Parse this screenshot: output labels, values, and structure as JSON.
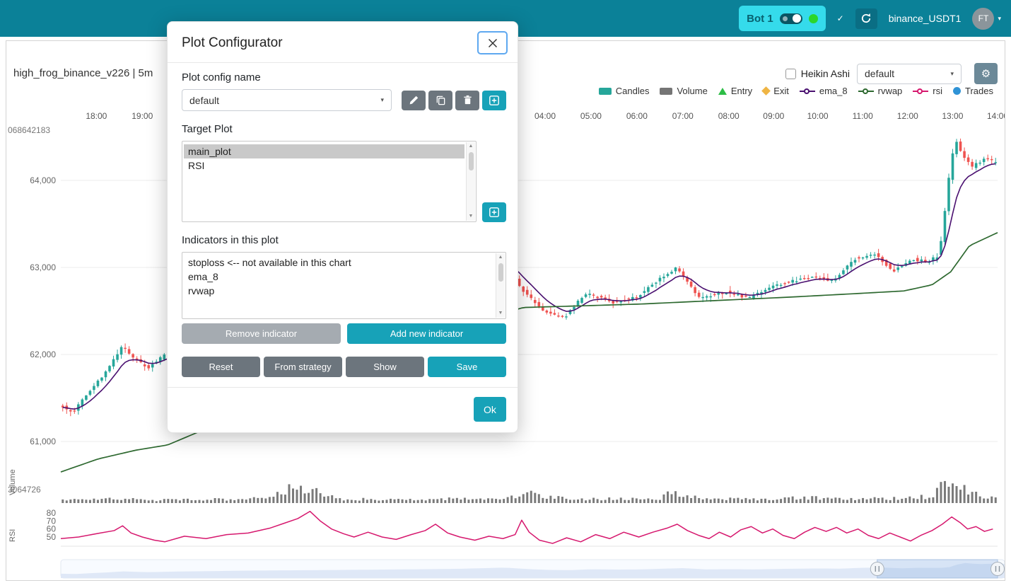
{
  "icons": {
    "check": "✓",
    "caret_down": "▾",
    "gear": "⚙",
    "scroll_up": "▲",
    "scroll_down": "▼"
  },
  "navbar": {
    "bot_label": "Bot 1",
    "exchange_label": "binance_USDT1",
    "avatar_label": "FT"
  },
  "chart": {
    "title": "high_frog_binance_v226 | 5m",
    "heikin_ashi_label": "Heikin Ashi",
    "plot_select_value": "default",
    "legend": [
      {
        "label": "Candles",
        "type": "rect",
        "color": "#26a69a"
      },
      {
        "label": "Volume",
        "type": "rect",
        "color": "#757575"
      },
      {
        "label": "Entry",
        "type": "triangle",
        "color": "#2dbd46"
      },
      {
        "label": "Exit",
        "type": "diamond",
        "color": "#efb544"
      },
      {
        "label": "ema_8",
        "type": "line",
        "color": "#4a1070"
      },
      {
        "label": "rvwap",
        "type": "line",
        "color": "#2e6930"
      },
      {
        "label": "rsi",
        "type": "line",
        "color": "#d6186e"
      },
      {
        "label": "Trades",
        "type": "circle",
        "color": "#2f93d6"
      }
    ],
    "axes": {
      "time_ticks": [
        {
          "label": "18:00",
          "f": 0.038
        },
        {
          "label": "19:00",
          "f": 0.087
        },
        {
          "label": "04:00",
          "f": 0.517
        },
        {
          "label": "05:00",
          "f": 0.566
        },
        {
          "label": "06:00",
          "f": 0.615
        },
        {
          "label": "07:00",
          "f": 0.664
        },
        {
          "label": "08:00",
          "f": 0.713
        },
        {
          "label": "09:00",
          "f": 0.761
        },
        {
          "label": "10:00",
          "f": 0.808
        },
        {
          "label": "11:00",
          "f": 0.856
        },
        {
          "label": "12:00",
          "f": 0.904
        },
        {
          "label": "13:00",
          "f": 0.952
        },
        {
          "label": "14:00",
          "f": 1.0
        }
      ],
      "price_ticks": [
        {
          "label": "64,000",
          "p": 64000
        },
        {
          "label": "63,000",
          "p": 63000
        },
        {
          "label": "62,000",
          "p": 62000
        },
        {
          "label": "61,000",
          "p": 61000
        }
      ],
      "price_overlap_label": "068642183",
      "volume_overlap_label": "3064726",
      "volume_axis_title": "Volume",
      "rsi_axis_title": "RSI",
      "rsi_ticks": [
        {
          "label": "80",
          "v": 80
        },
        {
          "label": "70",
          "v": 70
        },
        {
          "label": "60",
          "v": 60
        },
        {
          "label": "50",
          "v": 50
        }
      ]
    }
  },
  "chart_data": {
    "type": "candlestick",
    "timeframe": "5m",
    "price_axis_range": [
      60500,
      64900
    ],
    "rsi_axis_range": [
      30,
      90
    ],
    "series_colors": {
      "candle_up": "#26a69a",
      "candle_down": "#ef5350",
      "ema_8": "#4a1070",
      "rvwap": "#2e6930",
      "rsi": "#d6186e",
      "volume": "#7a7a7a"
    },
    "price_anchors": [
      [
        0,
        61420
      ],
      [
        0.015,
        61330
      ],
      [
        0.03,
        61550
      ],
      [
        0.05,
        61800
      ],
      [
        0.068,
        62100
      ],
      [
        0.08,
        61950
      ],
      [
        0.095,
        61850
      ],
      [
        0.114,
        62000
      ],
      [
        0.2,
        62300
      ],
      [
        0.3,
        62500
      ],
      [
        0.42,
        62800
      ],
      [
        0.47,
        63150
      ],
      [
        0.494,
        62750
      ],
      [
        0.517,
        62500
      ],
      [
        0.54,
        62430
      ],
      [
        0.562,
        62700
      ],
      [
        0.592,
        62600
      ],
      [
        0.615,
        62650
      ],
      [
        0.645,
        62900
      ],
      [
        0.66,
        63000
      ],
      [
        0.683,
        62650
      ],
      [
        0.713,
        62720
      ],
      [
        0.736,
        62650
      ],
      [
        0.766,
        62800
      ],
      [
        0.804,
        62900
      ],
      [
        0.826,
        62850
      ],
      [
        0.849,
        63100
      ],
      [
        0.872,
        63150
      ],
      [
        0.891,
        62950
      ],
      [
        0.909,
        63100
      ],
      [
        0.928,
        63060
      ],
      [
        0.94,
        63150
      ],
      [
        0.951,
        64100
      ],
      [
        0.957,
        64500
      ],
      [
        0.962,
        64330
      ],
      [
        0.974,
        64150
      ],
      [
        0.989,
        64260
      ],
      [
        1,
        64200
      ]
    ],
    "rvwap_anchors": [
      [
        0,
        60650
      ],
      [
        0.04,
        60800
      ],
      [
        0.08,
        60900
      ],
      [
        0.114,
        60960
      ],
      [
        0.2,
        61350
      ],
      [
        0.3,
        61850
      ],
      [
        0.4,
        62250
      ],
      [
        0.494,
        62540
      ],
      [
        0.56,
        62560
      ],
      [
        0.62,
        62580
      ],
      [
        0.7,
        62620
      ],
      [
        0.78,
        62660
      ],
      [
        0.85,
        62700
      ],
      [
        0.9,
        62730
      ],
      [
        0.93,
        62800
      ],
      [
        0.95,
        62950
      ],
      [
        0.97,
        63250
      ],
      [
        1,
        63400
      ]
    ],
    "volume_anchors": [
      [
        0,
        0.18
      ],
      [
        0.05,
        0.22
      ],
      [
        0.1,
        0.15
      ],
      [
        0.15,
        0.2
      ],
      [
        0.2,
        0.2
      ],
      [
        0.235,
        0.55
      ],
      [
        0.25,
        0.95
      ],
      [
        0.262,
        0.55
      ],
      [
        0.27,
        0.6
      ],
      [
        0.3,
        0.2
      ],
      [
        0.35,
        0.18
      ],
      [
        0.4,
        0.22
      ],
      [
        0.45,
        0.2
      ],
      [
        0.487,
        0.3
      ],
      [
        0.494,
        0.8
      ],
      [
        0.505,
        0.35
      ],
      [
        0.55,
        0.2
      ],
      [
        0.6,
        0.22
      ],
      [
        0.64,
        0.25
      ],
      [
        0.652,
        0.75
      ],
      [
        0.662,
        0.3
      ],
      [
        0.7,
        0.25
      ],
      [
        0.75,
        0.2
      ],
      [
        0.8,
        0.28
      ],
      [
        0.85,
        0.22
      ],
      [
        0.9,
        0.25
      ],
      [
        0.93,
        0.35
      ],
      [
        0.937,
        0.85
      ],
      [
        0.945,
        1.0
      ],
      [
        0.952,
        0.95
      ],
      [
        0.958,
        0.85
      ],
      [
        0.965,
        0.6
      ],
      [
        0.975,
        0.45
      ],
      [
        0.985,
        0.3
      ],
      [
        1,
        0.28
      ]
    ],
    "rsi_points": [
      [
        0,
        48
      ],
      [
        0.019,
        50
      ],
      [
        0.042,
        55
      ],
      [
        0.057,
        58
      ],
      [
        0.066,
        64
      ],
      [
        0.075,
        55
      ],
      [
        0.087,
        50
      ],
      [
        0.1,
        46
      ],
      [
        0.111,
        44
      ],
      [
        0.132,
        51
      ],
      [
        0.155,
        48
      ],
      [
        0.177,
        53
      ],
      [
        0.2,
        55
      ],
      [
        0.223,
        61
      ],
      [
        0.238,
        67
      ],
      [
        0.253,
        73
      ],
      [
        0.266,
        82
      ],
      [
        0.277,
        70
      ],
      [
        0.289,
        60
      ],
      [
        0.302,
        54
      ],
      [
        0.313,
        50
      ],
      [
        0.328,
        56
      ],
      [
        0.343,
        50
      ],
      [
        0.358,
        47
      ],
      [
        0.374,
        53
      ],
      [
        0.389,
        58
      ],
      [
        0.4,
        66
      ],
      [
        0.413,
        55
      ],
      [
        0.426,
        50
      ],
      [
        0.442,
        46
      ],
      [
        0.457,
        51
      ],
      [
        0.472,
        48
      ],
      [
        0.485,
        53
      ],
      [
        0.492,
        71
      ],
      [
        0.5,
        56
      ],
      [
        0.511,
        46
      ],
      [
        0.525,
        42
      ],
      [
        0.54,
        49
      ],
      [
        0.555,
        44
      ],
      [
        0.571,
        53
      ],
      [
        0.586,
        48
      ],
      [
        0.601,
        56
      ],
      [
        0.617,
        50
      ],
      [
        0.632,
        56
      ],
      [
        0.647,
        61
      ],
      [
        0.658,
        66
      ],
      [
        0.669,
        58
      ],
      [
        0.681,
        52
      ],
      [
        0.692,
        48
      ],
      [
        0.703,
        56
      ],
      [
        0.715,
        50
      ],
      [
        0.726,
        59
      ],
      [
        0.737,
        63
      ],
      [
        0.749,
        55
      ],
      [
        0.76,
        60
      ],
      [
        0.771,
        52
      ],
      [
        0.783,
        48
      ],
      [
        0.794,
        56
      ],
      [
        0.805,
        62
      ],
      [
        0.817,
        57
      ],
      [
        0.828,
        62
      ],
      [
        0.839,
        55
      ],
      [
        0.851,
        60
      ],
      [
        0.862,
        52
      ],
      [
        0.873,
        48
      ],
      [
        0.885,
        55
      ],
      [
        0.896,
        50
      ],
      [
        0.907,
        45
      ],
      [
        0.918,
        52
      ],
      [
        0.93,
        58
      ],
      [
        0.941,
        66
      ],
      [
        0.951,
        75
      ],
      [
        0.96,
        68
      ],
      [
        0.968,
        60
      ],
      [
        0.977,
        63
      ],
      [
        0.986,
        57
      ],
      [
        0.995,
        60
      ]
    ],
    "datazoom": {
      "window_start_f": 0.865,
      "window_end_f": 0.9925
    }
  },
  "modal": {
    "title": "Plot Configurator",
    "plot_config_name_label": "Plot config name",
    "config_select_value": "default",
    "target_plot_label": "Target Plot",
    "target_plots": [
      "main_plot",
      "RSI"
    ],
    "selected_target_plot": "main_plot",
    "indicators_label": "Indicators in this plot",
    "indicators": [
      "stoploss <-- not available in this chart",
      "ema_8",
      "rvwap"
    ],
    "buttons": {
      "remove": "Remove indicator",
      "add": "Add new indicator",
      "reset": "Reset",
      "from_strategy": "From strategy",
      "show": "Show",
      "save": "Save",
      "ok": "Ok"
    }
  }
}
